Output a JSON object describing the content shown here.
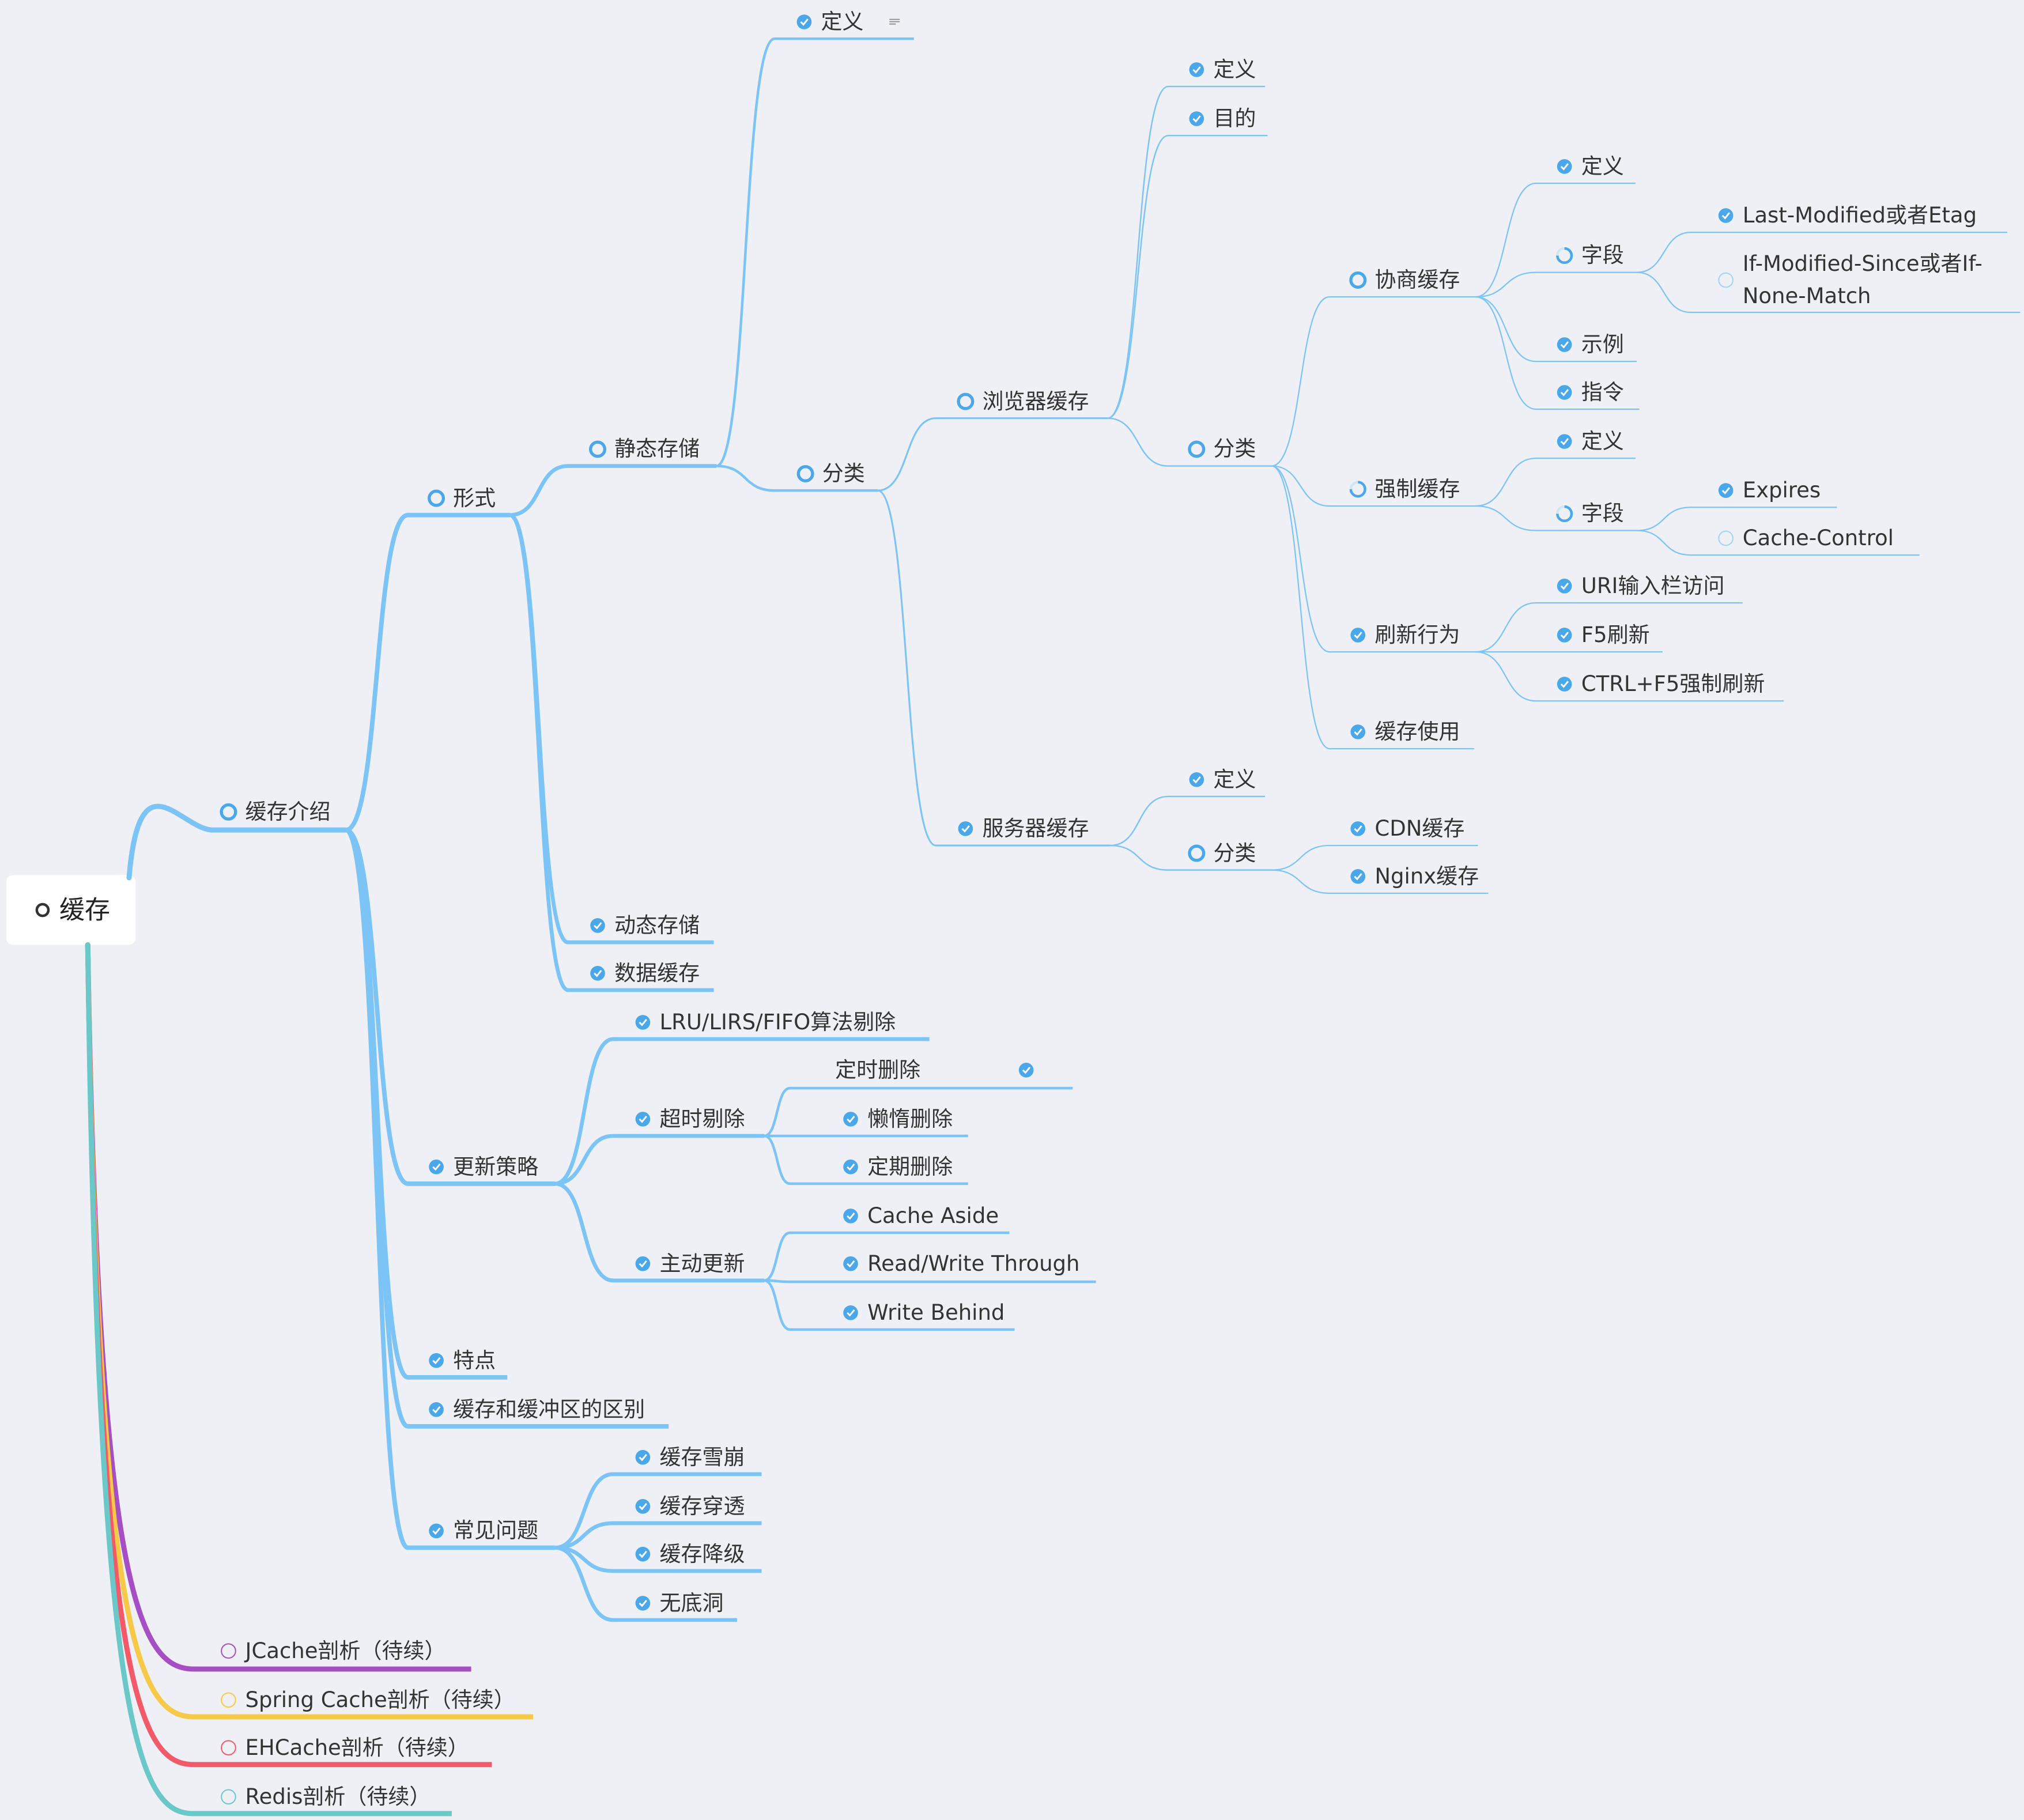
{
  "root": {
    "label": "缓存",
    "children": [
      {
        "label": "缓存介绍",
        "color": "#7cc4f6",
        "children": [
          {
            "label": "形式",
            "children": [
              {
                "label": "静态存储",
                "children": [
                  {
                    "label": "定义"
                  },
                  {
                    "label": "分类",
                    "children": [
                      {
                        "label": "浏览器缓存",
                        "children": [
                          {
                            "label": "定义"
                          },
                          {
                            "label": "目的"
                          },
                          {
                            "label": "分类",
                            "children": [
                              {
                                "label": "协商缓存",
                                "children": [
                                  {
                                    "label": "定义"
                                  },
                                  {
                                    "label": "字段",
                                    "children": [
                                      {
                                        "label": "Last-Modified或者Etag"
                                      },
                                      {
                                        "label": "If-Modified-Since或者If-None-Match"
                                      }
                                    ]
                                  },
                                  {
                                    "label": "示例"
                                  },
                                  {
                                    "label": "指令"
                                  }
                                ]
                              },
                              {
                                "label": "强制缓存",
                                "children": [
                                  {
                                    "label": "定义"
                                  },
                                  {
                                    "label": "字段",
                                    "children": [
                                      {
                                        "label": "Expires"
                                      },
                                      {
                                        "label": "Cache-Control"
                                      }
                                    ]
                                  }
                                ]
                              },
                              {
                                "label": "刷新行为",
                                "children": [
                                  {
                                    "label": "URI输入栏访问"
                                  },
                                  {
                                    "label": "F5刷新"
                                  },
                                  {
                                    "label": "CTRL+F5强制刷新"
                                  }
                                ]
                              },
                              {
                                "label": "缓存使用"
                              }
                            ]
                          }
                        ]
                      },
                      {
                        "label": "服务器缓存",
                        "children": [
                          {
                            "label": "定义"
                          },
                          {
                            "label": "分类",
                            "children": [
                              {
                                "label": "CDN缓存"
                              },
                              {
                                "label": "Nginx缓存"
                              }
                            ]
                          }
                        ]
                      }
                    ]
                  }
                ]
              },
              {
                "label": "动态存储"
              },
              {
                "label": "数据缓存"
              }
            ]
          },
          {
            "label": "更新策略",
            "children": [
              {
                "label": "LRU/LIRS/FIFO算法剔除"
              },
              {
                "label": "超时剔除",
                "children": [
                  {
                    "label": "定时删除"
                  },
                  {
                    "label": "懒惰删除"
                  },
                  {
                    "label": "定期删除"
                  }
                ]
              },
              {
                "label": "主动更新",
                "children": [
                  {
                    "label": "Cache Aside"
                  },
                  {
                    "label": "Read/Write Through"
                  },
                  {
                    "label": "Write Behind"
                  }
                ]
              }
            ]
          },
          {
            "label": "特点"
          },
          {
            "label": "缓存和缓冲区的区别"
          },
          {
            "label": "常见问题",
            "children": [
              {
                "label": "缓存雪崩"
              },
              {
                "label": "缓存穿透"
              },
              {
                "label": "缓存降级"
              },
              {
                "label": "无底洞"
              }
            ]
          }
        ]
      },
      {
        "label": "JCache剖析（待续）",
        "color": "#a64fc4"
      },
      {
        "label": "Spring Cache剖析（待续）",
        "color": "#f7c948"
      },
      {
        "label": "EHCache剖析（待续）",
        "color": "#f25a6a"
      },
      {
        "label": "Redis剖析（待续）",
        "color": "#6ac8c8"
      }
    ]
  }
}
